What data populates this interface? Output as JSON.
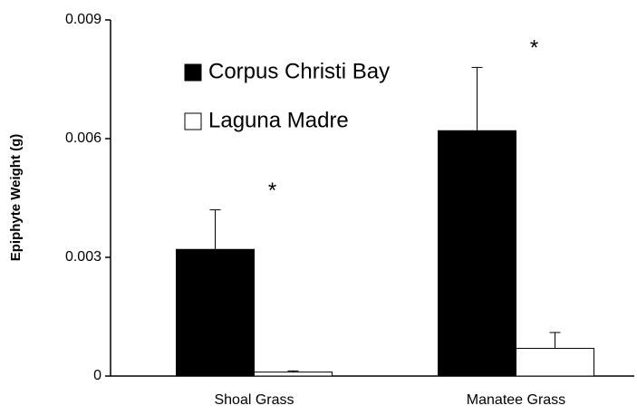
{
  "chart_data": {
    "type": "bar",
    "ylabel": "Epiphyte Weight (g)",
    "categories": [
      "Shoal Grass",
      "Manatee Grass"
    ],
    "series": [
      {
        "name": "Corpus Christi Bay",
        "color": "#000000",
        "values": [
          0.0032,
          0.0062
        ],
        "errors": [
          0.001,
          0.0016
        ]
      },
      {
        "name": "Laguna Madre",
        "color": "#ffffff",
        "values": [
          0.0001,
          0.0007
        ],
        "errors": [
          3e-05,
          0.0004
        ]
      }
    ],
    "annotations": [
      "*",
      "*"
    ],
    "ylim": [
      0,
      0.009
    ],
    "yticks": [
      0,
      0.003,
      0.006,
      0.009
    ],
    "grid": false
  }
}
